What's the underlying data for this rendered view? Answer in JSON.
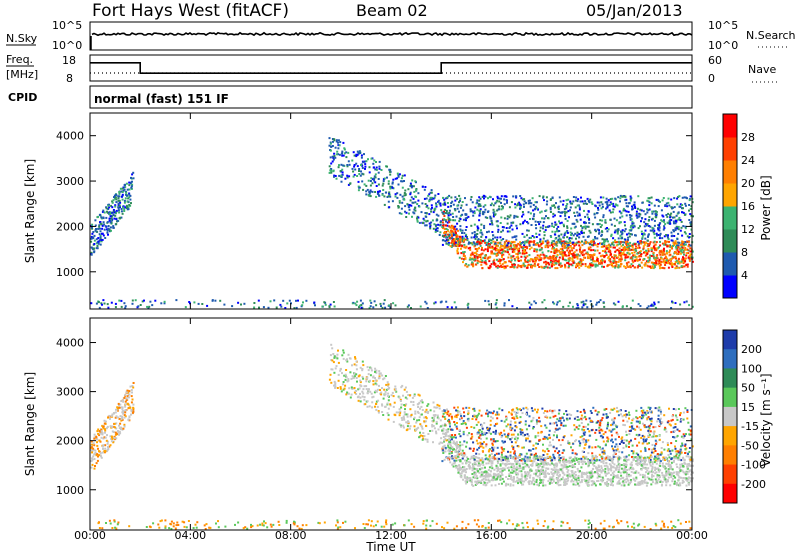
{
  "header": {
    "station": "Fort Hays West (fitACF)",
    "beam": "Beam 02",
    "date": "05/Jan/2013"
  },
  "panels": {
    "nsky_label": "N.Sky",
    "nsearch_label": "N.Search",
    "nsky_ticks": [
      "10^5",
      "10^0"
    ],
    "freq_label_1": "Freq.",
    "freq_label_2": "[MHz]",
    "freq_ticks": [
      "18",
      "8"
    ],
    "nave_label": "Nave",
    "nave_ticks": [
      "60",
      "0"
    ],
    "cpid_label": "CPID",
    "cpid_text": "normal (fast) 151 IF"
  },
  "chart_data": [
    {
      "type": "line",
      "title": "",
      "xlabel": "",
      "ylabel": "Freq. [MHz]",
      "ylim": [
        8,
        18
      ],
      "x": [
        "00:00",
        "02:00",
        "02:00",
        "14:00",
        "14:00",
        "24:00"
      ],
      "series": [
        {
          "name": "Freq.",
          "values": [
            15,
            15,
            11,
            11,
            15,
            15
          ]
        }
      ]
    },
    {
      "type": "heatmap",
      "title": "",
      "xlabel": "Time UT",
      "ylabel": "Slant Range [km]",
      "xlim": [
        "00:00",
        "24:00"
      ],
      "ylim": [
        180,
        4500
      ],
      "x_ticks": [
        "00:00",
        "04:00",
        "08:00",
        "12:00",
        "16:00",
        "20:00",
        "00:00"
      ],
      "y_ticks": [
        "1000",
        "2000",
        "3000",
        "4000"
      ],
      "colorbar": {
        "label": "Power [dB]",
        "ticks": [
          "4",
          "8",
          "12",
          "16",
          "20",
          "24",
          "28"
        ],
        "colors": [
          "#0000ff",
          "#1e5aaf",
          "#2e8b57",
          "#3cb371",
          "#ffa500",
          "#ff7f00",
          "#ff4000",
          "#ff0000"
        ]
      },
      "regions": [
        {
          "t_start": 0.0,
          "t_end": 1.7,
          "range_min": 1500,
          "range_max": 3200,
          "level": "low-mid"
        },
        {
          "t_start": 9.5,
          "t_end": 14.0,
          "range_min": 1400,
          "range_max": 3700,
          "level": "low-mid"
        },
        {
          "t_start": 14.0,
          "t_end": 24.0,
          "range_min": 900,
          "range_max": 2700,
          "level": "high near 1200-1600 km"
        }
      ]
    },
    {
      "type": "heatmap",
      "title": "",
      "xlabel": "Time UT",
      "ylabel": "Slant Range [km]",
      "xlim": [
        "00:00",
        "24:00"
      ],
      "ylim": [
        180,
        4500
      ],
      "x_ticks": [
        "00:00",
        "04:00",
        "08:00",
        "12:00",
        "16:00",
        "20:00",
        "00:00"
      ],
      "y_ticks": [
        "1000",
        "2000",
        "3000",
        "4000"
      ],
      "colorbar": {
        "label": "Velocity [m s⁻¹]",
        "ticks": [
          "200",
          "100",
          "50",
          "15",
          "-15",
          "-50",
          "-100",
          "-200"
        ],
        "colors": [
          "#1e3caa",
          "#2e6ebe",
          "#2e8b57",
          "#5ac85a",
          "#c8c8c8",
          "#ffa500",
          "#ff7f00",
          "#ff4000",
          "#ff0000"
        ]
      },
      "regions": [
        {
          "t_start": 0.0,
          "t_end": 1.7,
          "range_min": 1500,
          "range_max": 3200,
          "level": "ground scatter with some negative"
        },
        {
          "t_start": 9.5,
          "t_end": 14.0,
          "range_min": 1400,
          "range_max": 3700,
          "level": "mostly ground scatter"
        },
        {
          "t_start": 14.0,
          "t_end": 24.0,
          "range_min": 900,
          "range_max": 2700,
          "level": "ground scatter with green edges"
        }
      ]
    }
  ],
  "axes": {
    "ylabel": "Slant Range [km]",
    "xlabel": "Time UT",
    "power_label": "Power [dB]",
    "velocity_label": "Velocity [m s⁻¹]"
  }
}
